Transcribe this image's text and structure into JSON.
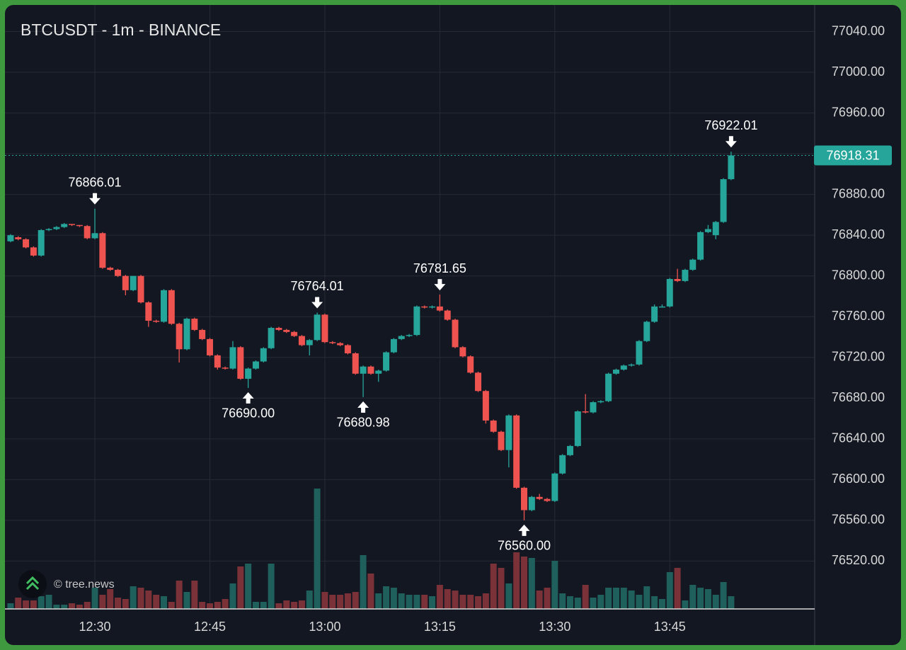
{
  "chart_data": {
    "type": "candlestick",
    "title": "BTCUSDT - 1m - BINANCE",
    "watermark": "© tree.news",
    "up_color": "#26a69a",
    "down_color": "#ef5350",
    "up_volume_color": "#1f5f5c",
    "down_volume_color": "#7a3137",
    "grid": true,
    "x": [
      "12:19",
      "12:20",
      "12:21",
      "12:22",
      "12:23",
      "12:24",
      "12:25",
      "12:26",
      "12:27",
      "12:28",
      "12:29",
      "12:30",
      "12:31",
      "12:32",
      "12:33",
      "12:34",
      "12:35",
      "12:36",
      "12:37",
      "12:38",
      "12:39",
      "12:40",
      "12:41",
      "12:42",
      "12:43",
      "12:44",
      "12:45",
      "12:46",
      "12:47",
      "12:48",
      "12:49",
      "12:50",
      "12:51",
      "12:52",
      "12:53",
      "12:54",
      "12:55",
      "12:56",
      "12:57",
      "12:58",
      "12:59",
      "13:00",
      "13:01",
      "13:02",
      "13:03",
      "13:04",
      "13:05",
      "13:06",
      "13:07",
      "13:08",
      "13:09",
      "13:10",
      "13:11",
      "13:12",
      "13:13",
      "13:14",
      "13:15",
      "13:16",
      "13:17",
      "13:18",
      "13:19",
      "13:20",
      "13:21",
      "13:22",
      "13:23",
      "13:24",
      "13:25",
      "13:26",
      "13:27",
      "13:28",
      "13:29",
      "13:30",
      "13:31",
      "13:32",
      "13:33",
      "13:34",
      "13:35",
      "13:36",
      "13:37",
      "13:38",
      "13:39",
      "13:40",
      "13:41",
      "13:42",
      "13:43",
      "13:44",
      "13:45",
      "13:46",
      "13:47",
      "13:48",
      "13:49",
      "13:50",
      "13:51",
      "13:52",
      "13:53"
    ],
    "open": [
      76834,
      76838,
      76836,
      76828,
      76820,
      76845,
      76846,
      76848,
      76851,
      76850,
      76849,
      76837,
      76842,
      76808,
      76806,
      76800,
      76786,
      76800,
      76774,
      76756,
      76755,
      76786,
      76753,
      76728,
      76758,
      76747,
      76738,
      76722,
      76710,
      76709,
      76730,
      76699,
      76709,
      76716,
      76729,
      76749,
      76747,
      76745,
      76741,
      76732,
      76737,
      76762,
      76735,
      76734,
      76732,
      76724,
      76704,
      76711,
      76704,
      76707,
      76725,
      76738,
      76741,
      76742,
      76770,
      76769,
      76770,
      76766,
      76757,
      76730,
      76721,
      76705,
      76687,
      76658,
      76647,
      76629,
      76663,
      76592,
      76570,
      76583,
      76581,
      76579,
      76606,
      76624,
      76633,
      76667,
      76666,
      76676,
      76677,
      76704,
      76708,
      76712,
      76713,
      76736,
      76755,
      76770,
      76770,
      76797,
      76795,
      76806,
      76816,
      76843,
      76840,
      76853,
      76895
    ],
    "high": [
      76841,
      76839,
      76837,
      76829,
      76846,
      76847,
      76849,
      76852,
      76851,
      76850,
      76850,
      76866.01,
      76843,
      76809,
      76807,
      76801,
      76800,
      76801,
      76775,
      76757,
      76787,
      76787,
      76754,
      76759,
      76759,
      76748,
      76739,
      76723,
      76711,
      76736,
      76731,
      76710,
      76717,
      76730,
      76750,
      76750,
      76748,
      76746,
      76742,
      76738,
      76764.01,
      76763,
      76736,
      76735,
      76733,
      76725,
      76712,
      76712,
      76708,
      76726,
      76739,
      76742,
      76743,
      76771,
      76771,
      76771,
      76781.65,
      76767,
      76758,
      76731,
      76722,
      76706,
      76688,
      76659,
      76648,
      76664,
      76664,
      76593,
      76584,
      76586,
      76582,
      76607,
      76625,
      76634,
      76668,
      76684,
      76677,
      76678,
      76705,
      76709,
      76713,
      76714,
      76737,
      76756,
      76772,
      76772,
      76798,
      76807,
      76807,
      76817,
      76844,
      76850,
      76854,
      76896,
      76922.01
    ],
    "low": [
      76833,
      76835,
      76827,
      76819,
      76819,
      76844,
      76845,
      76847,
      76849,
      76848,
      76836,
      76836,
      76807,
      76805,
      76799,
      76781,
      76785,
      76773,
      76750,
      76754,
      76754,
      76752,
      76715,
      76727,
      76746,
      76737,
      76721,
      76708,
      76708,
      76708,
      76698,
      76690.0,
      76708,
      76715,
      76728,
      76746,
      76744,
      76740,
      76731,
      76722,
      76736,
      76734,
      76733,
      76731,
      76723,
      76703,
      76680.98,
      76703,
      76696,
      76706,
      76724,
      76737,
      76740,
      76741,
      76768,
      76768,
      76765,
      76756,
      76729,
      76720,
      76704,
      76686,
      76655,
      76646,
      76628,
      76612,
      76591,
      76560.0,
      76569,
      76580,
      76578,
      76578,
      76605,
      76623,
      76632,
      76665,
      76665,
      76675,
      76676,
      76703,
      76707,
      76711,
      76712,
      76735,
      76754,
      76769,
      76769,
      76794,
      76794,
      76805,
      76815,
      76842,
      76836,
      76852,
      76894
    ],
    "close": [
      76840,
      76836,
      76828,
      76820,
      76845,
      76846,
      76848,
      76851,
      76850,
      76849,
      76837,
      76842,
      76808,
      76806,
      76800,
      76786,
      76800,
      76774,
      76756,
      76755,
      76786,
      76753,
      76728,
      76758,
      76747,
      76738,
      76722,
      76710,
      76709,
      76730,
      76699,
      76709,
      76716,
      76729,
      76749,
      76747,
      76745,
      76741,
      76732,
      76737,
      76762,
      76735,
      76734,
      76732,
      76724,
      76704,
      76711,
      76704,
      76707,
      76725,
      76738,
      76741,
      76742,
      76770,
      76769,
      76770,
      76766,
      76757,
      76730,
      76721,
      76705,
      76687,
      76658,
      76647,
      76629,
      76663,
      76592,
      76570,
      76583,
      76581,
      76579,
      76606,
      76624,
      76633,
      76667,
      76666,
      76676,
      76677,
      76704,
      76708,
      76712,
      76713,
      76736,
      76755,
      76770,
      76770,
      76797,
      76795,
      76806,
      76816,
      76843,
      76846,
      76853,
      76895,
      76918.31
    ],
    "volume": [
      8,
      16,
      12,
      12,
      18,
      20,
      6,
      6,
      8,
      6,
      10,
      30,
      20,
      28,
      16,
      14,
      32,
      30,
      26,
      20,
      18,
      10,
      40,
      24,
      40,
      10,
      8,
      10,
      14,
      36,
      60,
      64,
      10,
      10,
      64,
      8,
      12,
      10,
      12,
      26,
      170,
      24,
      20,
      20,
      22,
      24,
      76,
      50,
      22,
      32,
      30,
      22,
      20,
      20,
      20,
      18,
      34,
      28,
      26,
      20,
      20,
      18,
      22,
      64,
      58,
      36,
      80,
      74,
      72,
      26,
      30,
      68,
      22,
      18,
      16,
      34,
      16,
      20,
      30,
      30,
      30,
      26,
      20,
      32,
      18,
      14,
      52,
      58,
      12,
      34,
      30,
      28,
      20,
      38,
      18
    ],
    "ylim": [
      76473,
      77064
    ],
    "yticks": [
      {
        "value": 76520,
        "label": "76520.00"
      },
      {
        "value": 76560,
        "label": "76560.00"
      },
      {
        "value": 76600,
        "label": "76600.00"
      },
      {
        "value": 76640,
        "label": "76640.00"
      },
      {
        "value": 76680,
        "label": "76680.00"
      },
      {
        "value": 76720,
        "label": "76720.00"
      },
      {
        "value": 76760,
        "label": "76760.00"
      },
      {
        "value": 76800,
        "label": "76800.00"
      },
      {
        "value": 76840,
        "label": "76840.00"
      },
      {
        "value": 76880,
        "label": "76880.00"
      },
      {
        "value": 76920,
        "label": "76920.00"
      },
      {
        "value": 76960,
        "label": "76960.00"
      },
      {
        "value": 77000,
        "label": "77000.00"
      },
      {
        "value": 77040,
        "label": "77040.00"
      }
    ],
    "xticks": [
      "12:30",
      "12:45",
      "13:00",
      "13:15",
      "13:30",
      "13:45"
    ],
    "last_price": {
      "value": 76918.31,
      "label": "76918.31"
    },
    "annotations": [
      {
        "x": "12:30",
        "value": 76866.01,
        "label": "76866.01",
        "position": "above"
      },
      {
        "x": "12:50",
        "value": 76690.0,
        "label": "76690.00",
        "position": "below"
      },
      {
        "x": "12:59",
        "value": 76764.01,
        "label": "76764.01",
        "position": "above"
      },
      {
        "x": "13:05",
        "value": 76680.98,
        "label": "76680.98",
        "position": "below"
      },
      {
        "x": "13:15",
        "value": 76781.65,
        "label": "76781.65",
        "position": "above"
      },
      {
        "x": "13:26",
        "value": 76560.0,
        "label": "76560.00",
        "position": "below"
      },
      {
        "x": "13:53",
        "value": 76922.01,
        "label": "76922.01",
        "position": "above"
      }
    ]
  }
}
